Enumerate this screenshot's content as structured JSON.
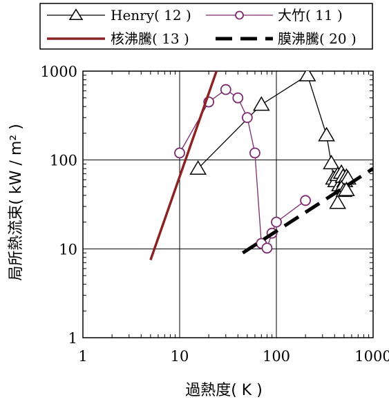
{
  "chart_data": {
    "type": "scatter",
    "x_scale": "log",
    "y_scale": "log",
    "xlim": [
      1,
      1000
    ],
    "ylim": [
      1,
      1000
    ],
    "grid": true,
    "legend_position": "top",
    "xlabel": "過熱度( K )",
    "ylabel": "局所熱流束( kW / m² )",
    "x_ticks": [
      {
        "value": 1,
        "label": "1"
      },
      {
        "value": 10,
        "label": "10"
      },
      {
        "value": 100,
        "label": "100"
      },
      {
        "value": 1000,
        "label": "1000"
      }
    ],
    "y_ticks": [
      {
        "value": 1,
        "label": "1"
      },
      {
        "value": 10,
        "label": "10"
      },
      {
        "value": 100,
        "label": "100"
      },
      {
        "value": 1000,
        "label": "1000"
      }
    ],
    "series": [
      {
        "name": "Henry( 12 )",
        "color": "#000000",
        "marker": "triangle",
        "line": "solid",
        "points": [
          [
            15.5,
            80
          ],
          [
            70,
            420
          ],
          [
            210,
            900
          ],
          [
            330,
            190
          ],
          [
            370,
            92
          ],
          [
            390,
            62
          ],
          [
            410,
            58
          ],
          [
            430,
            68
          ],
          [
            450,
            52
          ],
          [
            470,
            72
          ],
          [
            490,
            65
          ],
          [
            510,
            58
          ],
          [
            530,
            65
          ],
          [
            550,
            62
          ],
          [
            430,
            33
          ],
          [
            470,
            48
          ],
          [
            500,
            45
          ],
          [
            530,
            46
          ]
        ]
      },
      {
        "name": "大竹( 11 )",
        "color": "#7a2a6e",
        "marker": "circle",
        "line": "solid",
        "points": [
          [
            10,
            120
          ],
          [
            20,
            450
          ],
          [
            30,
            620
          ],
          [
            40,
            500
          ],
          [
            50,
            300
          ],
          [
            60,
            120
          ],
          [
            70,
            11.5
          ],
          [
            80,
            10.2
          ],
          [
            90,
            15
          ],
          [
            100,
            20
          ],
          [
            200,
            35
          ]
        ]
      },
      {
        "name": "核沸騰( 13 )",
        "color": "#8b2323",
        "marker": "none",
        "line": "solid",
        "points": [
          [
            5,
            7.5
          ],
          [
            25.5,
            1200
          ]
        ]
      },
      {
        "name": "膜沸騰( 20 )",
        "color": "#000000",
        "marker": "none",
        "line": "dashed",
        "points": [
          [
            45,
            9
          ],
          [
            1000,
            80
          ]
        ]
      }
    ]
  }
}
